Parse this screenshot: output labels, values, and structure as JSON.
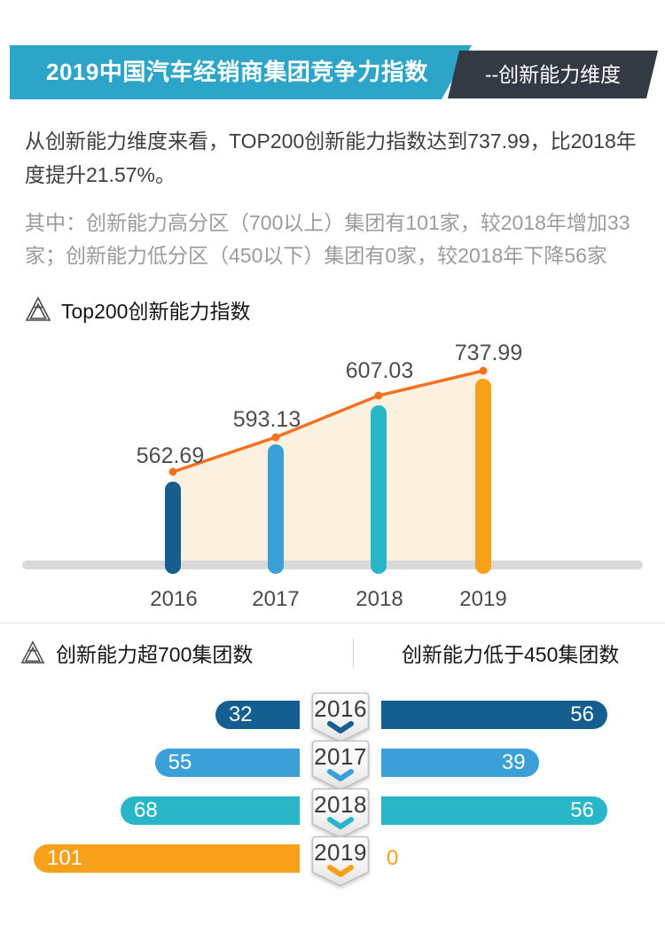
{
  "header": {
    "title": "2019中国汽车经销商集团竞争力指数",
    "subtitle": "--创新能力维度"
  },
  "intro": {
    "p1": "从创新能力维度来看，TOP200创新能力指数达到737.99，比2018年度提升21.57%。",
    "p2": "其中：创新能力高分区（700以上）集团有101家，较2018年增加33家；创新能力低分区（450以下）集团有0家，较2018年下降56家"
  },
  "sections": {
    "index_title": "Top200创新能力指数",
    "high_title": "创新能力超700集团数",
    "low_title": "创新能力低于450集团数"
  },
  "chart_data": [
    {
      "type": "line",
      "title": "Top200创新能力指数",
      "categories": [
        "2016",
        "2017",
        "2018",
        "2019"
      ],
      "series": [
        {
          "name": "Top200创新能力指数",
          "values": [
            562.69,
            593.13,
            607.03,
            737.99
          ]
        }
      ],
      "style": "orange line with dots and cream area fill over short rounded color bars, gray rounded baseline, no gridlines, data labels above points",
      "bar_colors": [
        "#155f90",
        "#3ba0d8",
        "#29b6c8",
        "#f9a01b"
      ],
      "line_color": "#f57120",
      "area_color": "#fbf1de",
      "baseline_color": "#d9d9d9"
    },
    {
      "type": "bar",
      "orientation": "horizontal-mirrored",
      "categories": [
        "2016",
        "2017",
        "2018",
        "2019"
      ],
      "series": [
        {
          "name": "创新能力超700集团数",
          "values": [
            32,
            55,
            68,
            101
          ]
        },
        {
          "name": "创新能力低于450集团数",
          "values": [
            56,
            39,
            56,
            0
          ]
        }
      ],
      "bar_colors": [
        "#155f90",
        "#3ba0d8",
        "#29b6c8",
        "#f9a01b"
      ],
      "value_label_color": "#ffffff",
      "zero_label_color": "#f9a01b"
    }
  ],
  "colors": {
    "banner_blue": "#2ca5c9",
    "banner_dark": "#333a43",
    "text_primary": "#3e3e3e",
    "text_secondary": "#9b9b9b",
    "value_label": "#4d4d4d",
    "badge_border": "#c2c2c2"
  }
}
